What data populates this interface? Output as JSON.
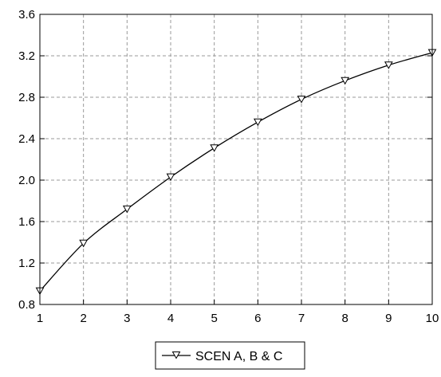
{
  "chart_data": {
    "type": "line",
    "title": "",
    "xlabel": "",
    "ylabel": "",
    "x": [
      1,
      2,
      3,
      4,
      5,
      6,
      7,
      8,
      9,
      10
    ],
    "xlim": [
      1,
      10
    ],
    "ylim": [
      0.8,
      3.6
    ],
    "xticks": [
      "1",
      "2",
      "3",
      "4",
      "5",
      "6",
      "7",
      "8",
      "9",
      "10"
    ],
    "yticks": [
      "0.8",
      "1.2",
      "1.6",
      "2.0",
      "2.4",
      "2.8",
      "3.2",
      "3.6"
    ],
    "grid": true,
    "legend_position": "bottom-center",
    "series": [
      {
        "name": "SCEN A, B & C",
        "values": [
          0.93,
          1.39,
          1.72,
          2.03,
          2.31,
          2.56,
          2.78,
          2.96,
          3.11,
          3.23
        ],
        "color": "#000000",
        "marker": "triangle-down-open"
      }
    ]
  }
}
